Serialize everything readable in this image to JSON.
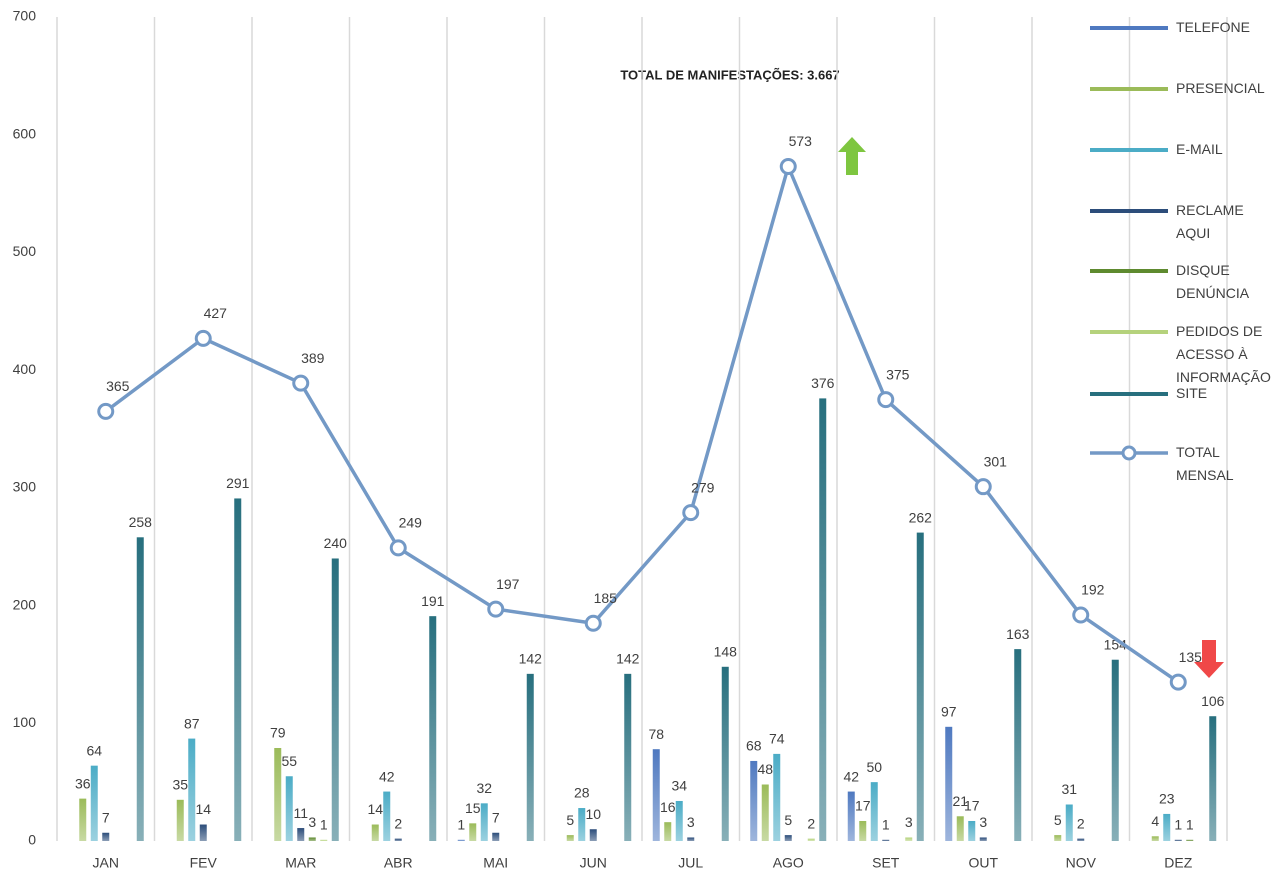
{
  "chart_data": {
    "type": "bar",
    "title": "TOTAL DE MANIFESTAÇÕES: 3.667",
    "categories": [
      "JAN",
      "FEV",
      "MAR",
      "ABR",
      "MAI",
      "JUN",
      "JUL",
      "AGO",
      "SET",
      "OUT",
      "NOV",
      "DEZ"
    ],
    "ylim": [
      0,
      700
    ],
    "yticks": [
      0,
      100,
      200,
      300,
      400,
      500,
      600,
      700
    ],
    "series": [
      {
        "name": "TELEFONE",
        "color": "#4f79c0",
        "values": [
          null,
          null,
          null,
          null,
          1,
          null,
          78,
          68,
          42,
          97,
          null,
          null
        ]
      },
      {
        "name": "PRESENCIAL",
        "color": "#9bbb59",
        "values": [
          36,
          35,
          79,
          14,
          15,
          5,
          16,
          48,
          17,
          21,
          5,
          4
        ]
      },
      {
        "name": "E-MAIL",
        "color": "#4bacc6",
        "values": [
          64,
          87,
          55,
          42,
          32,
          28,
          34,
          74,
          50,
          17,
          31,
          23
        ]
      },
      {
        "name": "RECLAME AQUI",
        "color": "#2c4d7a",
        "values": [
          7,
          14,
          11,
          2,
          7,
          10,
          3,
          5,
          1,
          3,
          2,
          1
        ]
      },
      {
        "name": "DISQUE DENÚNCIA",
        "color": "#5e8a2f",
        "values": [
          null,
          null,
          3,
          null,
          null,
          null,
          null,
          null,
          null,
          null,
          null,
          1
        ]
      },
      {
        "name": "PEDIDOS DE ACESSO À INFORMAÇÃO",
        "color": "#b5d27c",
        "values": [
          null,
          null,
          1,
          null,
          null,
          null,
          null,
          2,
          3,
          null,
          null,
          null
        ]
      },
      {
        "name": "SITE",
        "color": "#276f7e",
        "values": [
          258,
          291,
          240,
          191,
          142,
          142,
          148,
          376,
          262,
          163,
          154,
          106
        ]
      },
      {
        "name": "TOTAL MENSAL",
        "type": "line",
        "color": "#7399c6",
        "values": [
          365,
          427,
          389,
          249,
          197,
          185,
          279,
          573,
          375,
          301,
          192,
          135
        ]
      }
    ]
  }
}
